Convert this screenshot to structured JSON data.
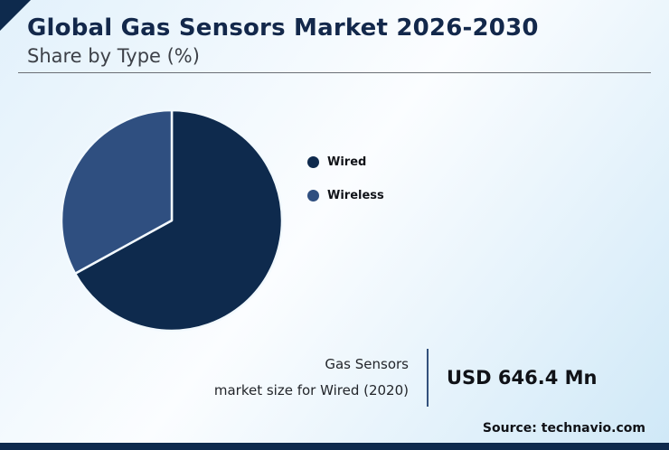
{
  "header": {
    "title": "Global Gas Sensors Market 2026-2030",
    "subtitle": "Share by Type (%)"
  },
  "chart_data": {
    "type": "pie",
    "title": "Global Gas Sensors Market 2026-2030 — Share by Type (%)",
    "labels": [
      "Wired",
      "Wireless"
    ],
    "values": [
      67,
      33
    ],
    "colors": [
      "#0e2a4d",
      "#2f4f80"
    ],
    "start_angle_deg": 0,
    "direction": "clockwise",
    "legend_position": "right"
  },
  "stat": {
    "caption_line1": "Gas Sensors",
    "caption_line2": "market size for Wired (2020)",
    "value": "USD 646.4 Mn"
  },
  "footer": {
    "source": "Source: technavio.com"
  }
}
